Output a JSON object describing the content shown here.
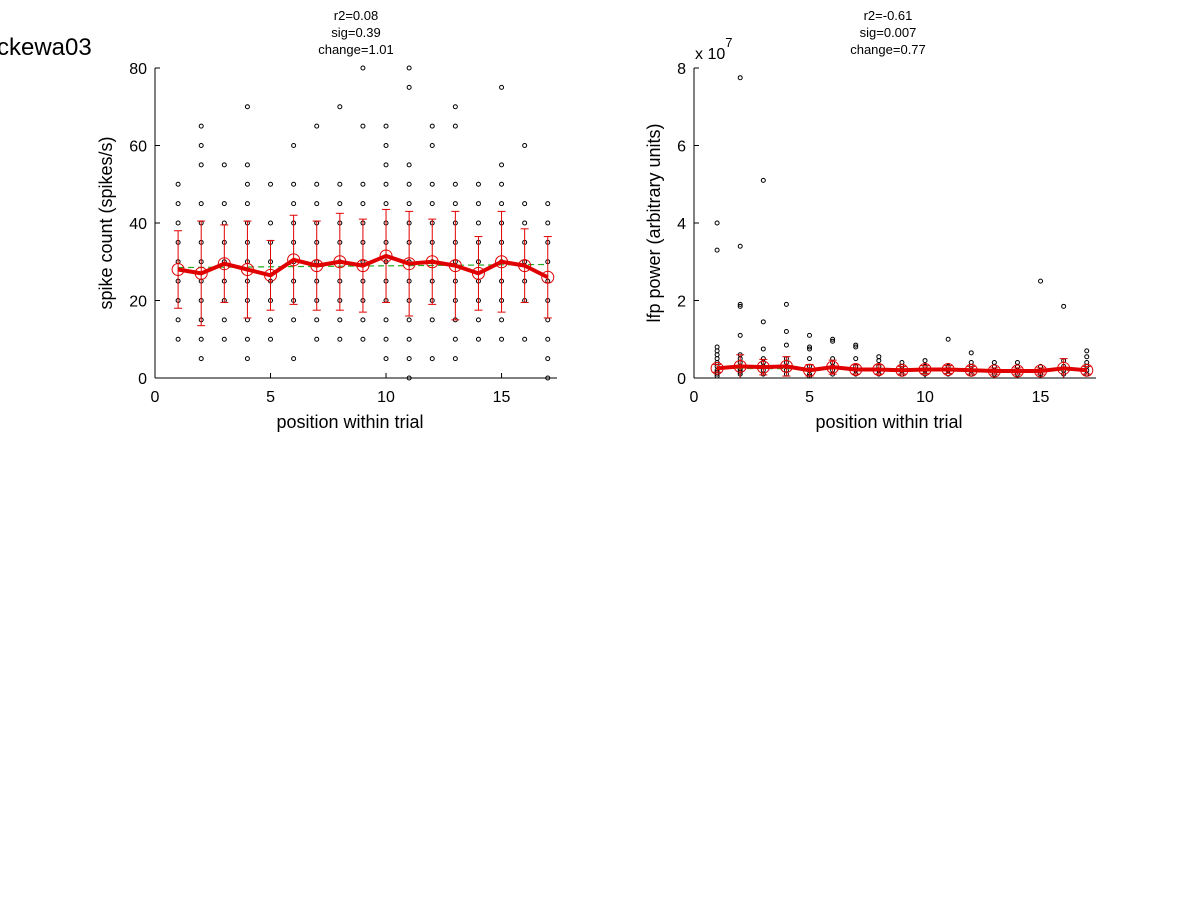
{
  "figure_title": "ckewa03",
  "chart_data": [
    {
      "type": "scatter",
      "title_lines": [
        "r2=0.08",
        "sig=0.39",
        "change=1.01"
      ],
      "xlabel": "position within trial",
      "ylabel": "spike count (spikes/s)",
      "xlim": [
        0,
        17.4
      ],
      "ylim": [
        0,
        80
      ],
      "xticks": [
        0,
        5,
        10,
        15
      ],
      "yticks": [
        0,
        20,
        40,
        60,
        80
      ],
      "exponent_label": "",
      "exponent_sup": "",
      "grid": false,
      "colors": {
        "points": "#000000",
        "mean": "#e00000",
        "fit": "#22aa22"
      },
      "raw_points": [
        {
          "x": 1,
          "y": [
            10,
            15,
            20,
            25,
            30,
            35,
            40,
            45,
            50
          ]
        },
        {
          "x": 2,
          "y": [
            5,
            10,
            15,
            20,
            25,
            30,
            35,
            40,
            45,
            55,
            60,
            65
          ]
        },
        {
          "x": 3,
          "y": [
            10,
            15,
            20,
            25,
            30,
            35,
            40,
            45,
            55
          ]
        },
        {
          "x": 4,
          "y": [
            5,
            10,
            15,
            20,
            25,
            30,
            35,
            40,
            45,
            50,
            55,
            70
          ]
        },
        {
          "x": 5,
          "y": [
            10,
            15,
            20,
            25,
            30,
            35,
            40,
            50
          ]
        },
        {
          "x": 6,
          "y": [
            5,
            15,
            20,
            25,
            30,
            35,
            40,
            45,
            50,
            60
          ]
        },
        {
          "x": 7,
          "y": [
            10,
            15,
            20,
            25,
            30,
            35,
            40,
            45,
            50,
            65
          ]
        },
        {
          "x": 8,
          "y": [
            10,
            15,
            20,
            25,
            30,
            35,
            40,
            45,
            50,
            70
          ]
        },
        {
          "x": 9,
          "y": [
            10,
            15,
            20,
            25,
            30,
            35,
            40,
            45,
            50,
            65,
            80
          ]
        },
        {
          "x": 10,
          "y": [
            5,
            10,
            15,
            20,
            25,
            30,
            35,
            40,
            45,
            50,
            55,
            60,
            65
          ]
        },
        {
          "x": 11,
          "y": [
            0,
            5,
            10,
            15,
            20,
            25,
            30,
            35,
            40,
            45,
            50,
            55,
            75,
            80
          ]
        },
        {
          "x": 12,
          "y": [
            5,
            15,
            20,
            25,
            30,
            35,
            40,
            45,
            50,
            60,
            65
          ]
        },
        {
          "x": 13,
          "y": [
            5,
            10,
            15,
            20,
            25,
            30,
            35,
            40,
            45,
            50,
            65,
            70
          ]
        },
        {
          "x": 14,
          "y": [
            10,
            15,
            20,
            25,
            30,
            35,
            40,
            45,
            50
          ]
        },
        {
          "x": 15,
          "y": [
            10,
            15,
            20,
            25,
            30,
            35,
            40,
            45,
            50,
            55,
            75
          ]
        },
        {
          "x": 16,
          "y": [
            10,
            20,
            25,
            30,
            35,
            40,
            45,
            60
          ]
        },
        {
          "x": 17,
          "y": [
            0,
            5,
            10,
            15,
            20,
            25,
            30,
            35,
            40,
            45
          ]
        }
      ],
      "mean": {
        "x": [
          1,
          2,
          3,
          4,
          5,
          6,
          7,
          8,
          9,
          10,
          11,
          12,
          13,
          14,
          15,
          16,
          17
        ],
        "y": [
          28,
          27,
          29.5,
          28,
          26.5,
          30.5,
          29,
          30,
          29,
          31.5,
          29.5,
          30,
          29,
          27,
          30,
          29,
          26
        ],
        "err": [
          10,
          13.5,
          10,
          12.5,
          9,
          11.5,
          11.5,
          12.5,
          12,
          12,
          13.5,
          11,
          14,
          9.5,
          13,
          9.5,
          10.5
        ]
      },
      "fit_line": {
        "x": [
          1,
          17
        ],
        "y": [
          28.5,
          29.3
        ]
      }
    },
    {
      "type": "scatter",
      "title_lines": [
        "r2=-0.61",
        "sig=0.007",
        "change=0.77"
      ],
      "xlabel": "position within trial",
      "ylabel": "lfp power (arbitrary units)",
      "xlim": [
        0,
        17.4
      ],
      "ylim": [
        0,
        8
      ],
      "xticks": [
        0,
        5,
        10,
        15
      ],
      "yticks": [
        0,
        2,
        4,
        6,
        8
      ],
      "exponent_label": "x 10",
      "exponent_sup": "7",
      "grid": false,
      "colors": {
        "points": "#000000",
        "mean": "#e00000",
        "fit": "#22aa22"
      },
      "raw_points": [
        {
          "x": 1,
          "y": [
            0.05,
            0.1,
            0.15,
            0.2,
            0.3,
            0.4,
            0.5,
            0.6,
            0.7,
            0.8,
            3.3,
            4.0
          ]
        },
        {
          "x": 2,
          "y": [
            0.1,
            0.15,
            0.2,
            0.25,
            0.3,
            0.4,
            0.5,
            0.6,
            1.1,
            1.85,
            1.9,
            3.4,
            7.75
          ]
        },
        {
          "x": 3,
          "y": [
            0.1,
            0.2,
            0.3,
            0.4,
            0.5,
            0.75,
            1.45,
            5.1
          ]
        },
        {
          "x": 4,
          "y": [
            0.1,
            0.2,
            0.3,
            0.4,
            0.5,
            0.85,
            1.2,
            1.9
          ]
        },
        {
          "x": 5,
          "y": [
            0.05,
            0.1,
            0.2,
            0.3,
            0.5,
            0.75,
            0.8,
            1.1
          ]
        },
        {
          "x": 6,
          "y": [
            0.1,
            0.2,
            0.3,
            0.4,
            0.5,
            0.95,
            1.0
          ]
        },
        {
          "x": 7,
          "y": [
            0.1,
            0.2,
            0.3,
            0.5,
            0.8,
            0.85
          ]
        },
        {
          "x": 8,
          "y": [
            0.1,
            0.2,
            0.3,
            0.45,
            0.55
          ]
        },
        {
          "x": 9,
          "y": [
            0.1,
            0.2,
            0.3,
            0.4
          ]
        },
        {
          "x": 10,
          "y": [
            0.1,
            0.2,
            0.3,
            0.45
          ]
        },
        {
          "x": 11,
          "y": [
            0.1,
            0.2,
            0.3,
            1.0
          ]
        },
        {
          "x": 12,
          "y": [
            0.1,
            0.2,
            0.3,
            0.4,
            0.65
          ]
        },
        {
          "x": 13,
          "y": [
            0.1,
            0.2,
            0.3,
            0.4
          ]
        },
        {
          "x": 14,
          "y": [
            0.1,
            0.2,
            0.3,
            0.4
          ]
        },
        {
          "x": 15,
          "y": [
            0.1,
            0.2,
            0.3,
            2.5
          ]
        },
        {
          "x": 16,
          "y": [
            0.1,
            0.2,
            0.3,
            0.45,
            1.85
          ]
        },
        {
          "x": 17,
          "y": [
            0.1,
            0.2,
            0.3,
            0.4,
            0.55,
            0.7
          ]
        }
      ],
      "mean": {
        "x": [
          1,
          2,
          3,
          4,
          5,
          6,
          7,
          8,
          9,
          10,
          11,
          12,
          13,
          14,
          15,
          16,
          17
        ],
        "y": [
          0.25,
          0.3,
          0.28,
          0.3,
          0.2,
          0.28,
          0.22,
          0.22,
          0.2,
          0.22,
          0.22,
          0.2,
          0.18,
          0.18,
          0.18,
          0.25,
          0.2
        ],
        "err": [
          0.1,
          0.3,
          0.2,
          0.25,
          0.15,
          0.18,
          0.12,
          0.12,
          0.1,
          0.1,
          0.1,
          0.1,
          0.08,
          0.08,
          0.08,
          0.25,
          0.1
        ]
      },
      "fit_line": {
        "x": [
          1,
          17
        ],
        "y": [
          0.25,
          0.2
        ]
      }
    }
  ]
}
